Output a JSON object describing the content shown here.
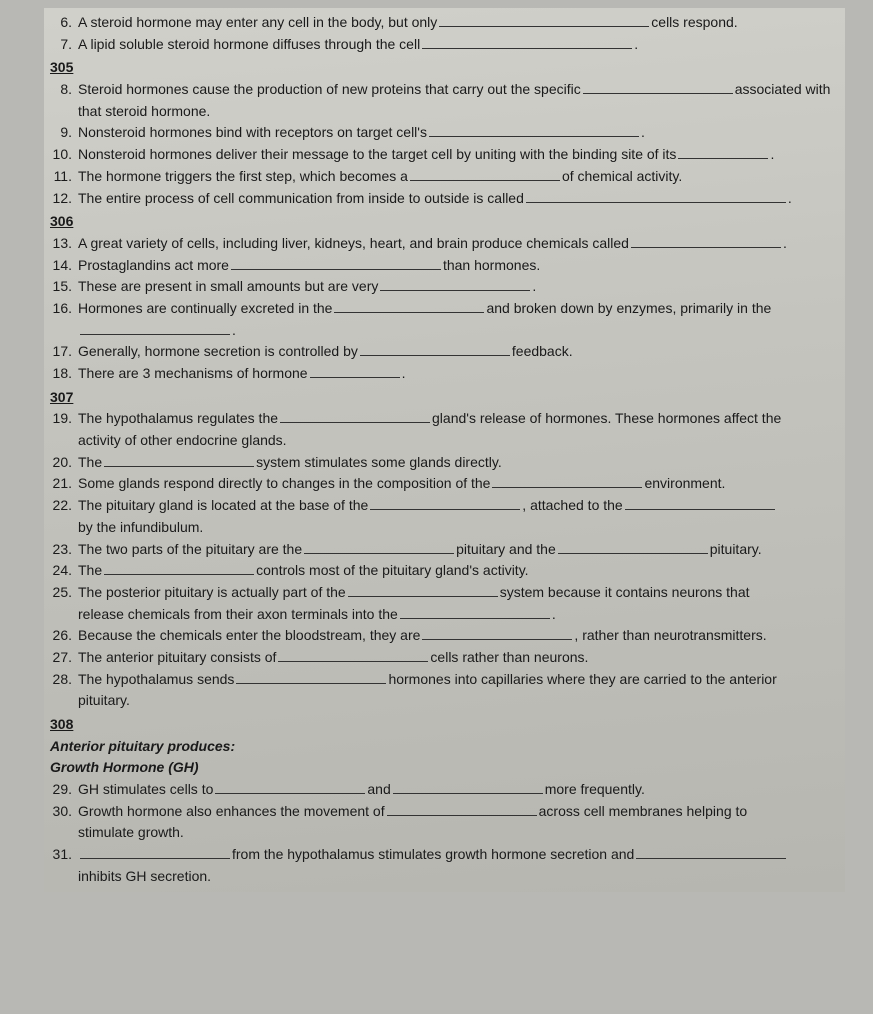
{
  "pages": {
    "p305": "305",
    "p306": "306",
    "p307": "307",
    "p308": "308"
  },
  "q6": {
    "n": "6.",
    "a": "A steroid hormone may enter any cell in the body, but only",
    "b": "cells respond."
  },
  "q7": {
    "n": "7.",
    "a": "A lipid soluble steroid hormone diffuses through the cell",
    "b": "."
  },
  "q8": {
    "n": "8.",
    "a": "Steroid hormones cause the production of new proteins that carry out the specific",
    "b": "associated with",
    "c": "that steroid hormone."
  },
  "q9": {
    "n": "9.",
    "a": "Nonsteroid hormones bind with receptors on target cell's",
    "b": "."
  },
  "q10": {
    "n": "10.",
    "a": "Nonsteroid hormones deliver their message to the target cell by uniting with the binding site of its",
    "b": "."
  },
  "q11": {
    "n": "11.",
    "a": "The hormone triggers the first step, which becomes a",
    "b": "of chemical activity."
  },
  "q12": {
    "n": "12.",
    "a": "The entire process of cell communication from inside to outside is called",
    "b": "."
  },
  "q13": {
    "n": "13.",
    "a": "A great variety of cells, including liver, kidneys, heart, and brain produce chemicals called",
    "b": "."
  },
  "q14": {
    "n": "14.",
    "a": "Prostaglandins act more",
    "b": "than hormones."
  },
  "q15": {
    "n": "15.",
    "a": "These are present in small amounts but are very",
    "b": "."
  },
  "q16": {
    "n": "16.",
    "a": "Hormones are continually excreted in the",
    "b": "and broken down by enzymes, primarily in the",
    "c": "."
  },
  "q17": {
    "n": "17.",
    "a": "Generally, hormone secretion is controlled by",
    "b": "feedback."
  },
  "q18": {
    "n": "18.",
    "a": "There are 3 mechanisms of hormone",
    "b": "."
  },
  "q19": {
    "n": "19.",
    "a": "The hypothalamus regulates the",
    "b": "gland's release of hormones.  These hormones affect the",
    "c": "activity of other endocrine glands."
  },
  "q20": {
    "n": "20.",
    "a": "The",
    "b": "system stimulates some glands directly."
  },
  "q21": {
    "n": "21.",
    "a": "Some glands respond directly to changes in the composition of the",
    "b": "environment."
  },
  "q22": {
    "n": "22.",
    "a": "The pituitary gland is located at the base of the",
    "b": ", attached to the",
    "c": "by the infundibulum."
  },
  "q23": {
    "n": "23.",
    "a": "The two parts of the pituitary are the",
    "b": "pituitary and the",
    "c": "pituitary."
  },
  "q24": {
    "n": "24.",
    "a": "The",
    "b": "controls most of the pituitary gland's activity."
  },
  "q25": {
    "n": "25.",
    "a": "The posterior pituitary is actually part of the",
    "b": "system because it contains neurons that",
    "c": "release chemicals from their axon terminals into the",
    "d": "."
  },
  "q26": {
    "n": "26.",
    "a": "Because the chemicals enter the bloodstream, they are",
    "b": ", rather than neurotransmitters."
  },
  "q27": {
    "n": "27.",
    "a": "The anterior pituitary consists of",
    "b": "cells rather than neurons."
  },
  "q28": {
    "n": "28.",
    "a": "The hypothalamus sends",
    "b": "hormones into capillaries where they are carried to the anterior",
    "c": "pituitary."
  },
  "hdr1": "Anterior pituitary produces:",
  "hdr2": "Growth Hormone (GH)",
  "q29": {
    "n": "29.",
    "a": "GH stimulates cells to",
    "b": "and",
    "c": "more frequently."
  },
  "q30": {
    "n": "30.",
    "a": "Growth hormone also enhances the movement of",
    "b": "across cell membranes helping to",
    "c": "stimulate growth."
  },
  "q31": {
    "n": "31.",
    "a": "from the hypothalamus stimulates growth hormone secretion and",
    "b": "inhibits GH secretion."
  }
}
